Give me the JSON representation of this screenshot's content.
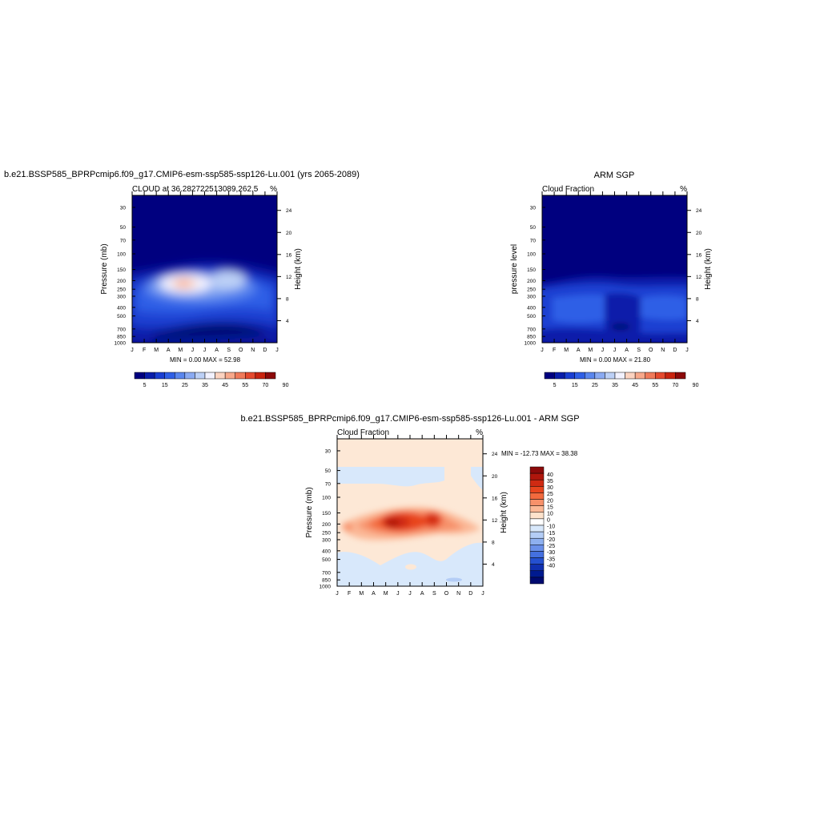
{
  "chart_data": [
    {
      "type": "heatmap",
      "id": "model",
      "suptitle": "b.e21.BSSP585_BPRPcmip6.f09_g17.CMIP6-esm-ssp585-ssp126-Lu.001 (yrs 2065-2089)",
      "title_left": "CLOUD at 36.282722513089,262.5",
      "title_right": "%",
      "ylabel": "Pressure (mb)",
      "ylabel_right": "Height (km)",
      "x_ticks": [
        "J",
        "F",
        "M",
        "A",
        "M",
        "J",
        "J",
        "A",
        "S",
        "O",
        "N",
        "D",
        "J"
      ],
      "y_ticks": [
        "30",
        "50",
        "70",
        "100",
        "150",
        "200",
        "250",
        "300",
        "400",
        "500",
        "700",
        "850",
        "1000"
      ],
      "y_ticks_right": [
        "24",
        "20",
        "16",
        "12",
        "8",
        "4"
      ],
      "stats": "MIN =   0.00 MAX =  52.98",
      "colorbar_labels": [
        "5",
        "15",
        "25",
        "35",
        "45",
        "55",
        "70",
        "90"
      ],
      "colorbar_colors": [
        "#00007f",
        "#0a1eaa",
        "#1a3fd2",
        "#2f5fe6",
        "#5a86ee",
        "#8aaaf2",
        "#bcd0f6",
        "#f2f2ff",
        "#fcd3c0",
        "#f8a88a",
        "#f07a5a",
        "#e54a2e",
        "#c9240f",
        "#8c0a0a"
      ],
      "range": [
        0,
        52.98
      ]
    },
    {
      "type": "heatmap",
      "id": "obs",
      "suptitle": "ARM SGP",
      "title_left": "Cloud Fraction",
      "title_right": "%",
      "ylabel": "pressure level",
      "ylabel_right": "Height (km)",
      "x_ticks": [
        "J",
        "F",
        "M",
        "A",
        "M",
        "J",
        "J",
        "A",
        "S",
        "O",
        "N",
        "D",
        "J"
      ],
      "y_ticks": [
        "30",
        "50",
        "70",
        "100",
        "150",
        "200",
        "250",
        "300",
        "400",
        "500",
        "700",
        "850",
        "1000"
      ],
      "y_ticks_right": [
        "24",
        "20",
        "16",
        "12",
        "8",
        "4"
      ],
      "stats": "MIN =   0.00 MAX =  21.80",
      "colorbar_labels": [
        "5",
        "15",
        "25",
        "35",
        "45",
        "55",
        "70",
        "90"
      ],
      "range": [
        0,
        21.8
      ]
    },
    {
      "type": "heatmap",
      "id": "diff",
      "suptitle": "b.e21.BSSP585_BPRPcmip6.f09_g17.CMIP6-esm-ssp585-ssp126-Lu.001 - ARM SGP",
      "title_left": "Cloud Fraction",
      "title_right": "%",
      "ylabel": "Pressure (mb)",
      "ylabel_right": "Height (km)",
      "x_ticks": [
        "J",
        "F",
        "M",
        "A",
        "M",
        "J",
        "J",
        "A",
        "S",
        "O",
        "N",
        "D",
        "J"
      ],
      "y_ticks": [
        "30",
        "50",
        "70",
        "100",
        "150",
        "200",
        "250",
        "300",
        "400",
        "500",
        "700",
        "850",
        "1000"
      ],
      "y_ticks_right": [
        "24",
        "20",
        "16",
        "12",
        "8",
        "4"
      ],
      "stats": "MIN = -12.73 MAX =  38.38",
      "colorbar_labels": [
        "40",
        "35",
        "30",
        "25",
        "20",
        "15",
        "10",
        "0",
        "-10",
        "-15",
        "-20",
        "-25",
        "-30",
        "-35",
        "-40"
      ],
      "colorbar_colors": [
        "#8c0a0a",
        "#b0160c",
        "#d02a12",
        "#e8451e",
        "#f26a3e",
        "#f7916a",
        "#fbb896",
        "#fde2cc",
        "#ffffff",
        "#d8e8fb",
        "#b4cdf6",
        "#8eb0f0",
        "#6a90ea",
        "#4470e0",
        "#2450d0",
        "#1030b0",
        "#001a90",
        "#000a70"
      ],
      "range": [
        -12.73,
        38.38
      ]
    }
  ]
}
